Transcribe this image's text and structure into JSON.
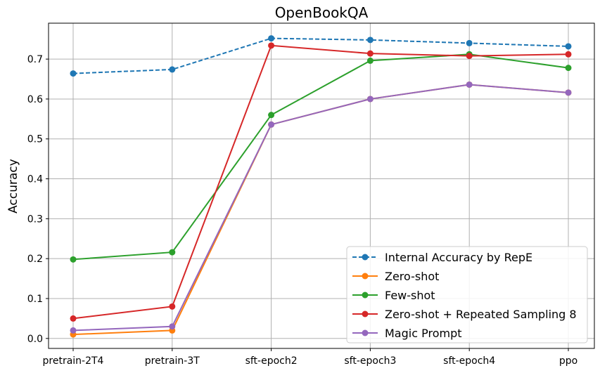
{
  "chart_data": {
    "type": "line",
    "title": "OpenBookQA",
    "xlabel": "",
    "ylabel": "Accuracy",
    "categories": [
      "pretrain-2T4",
      "pretrain-3T",
      "sft-epoch2",
      "sft-epoch3",
      "sft-epoch4",
      "ppo"
    ],
    "yticks": [
      "0.0",
      "0.1",
      "0.2",
      "0.3",
      "0.4",
      "0.5",
      "0.6",
      "0.7"
    ],
    "ylim": [
      -0.025,
      0.79
    ],
    "grid": true,
    "legend_position": "lower right",
    "series": [
      {
        "name": "Internal Accuracy by RepE",
        "color": "#1f77b4",
        "style": "dashed",
        "values": [
          0.664,
          0.674,
          0.752,
          0.748,
          0.74,
          0.732
        ]
      },
      {
        "name": "Zero-shot",
        "color": "#ff7f0e",
        "style": "solid",
        "values": [
          0.01,
          0.02,
          0.536,
          0.6,
          0.636,
          0.616
        ]
      },
      {
        "name": "Few-shot",
        "color": "#2ca02c",
        "style": "solid",
        "values": [
          0.198,
          0.216,
          0.56,
          0.696,
          0.712,
          0.678
        ]
      },
      {
        "name": "Zero-shot + Repeated Sampling 8",
        "color": "#d62728",
        "style": "solid",
        "values": [
          0.05,
          0.08,
          0.734,
          0.714,
          0.708,
          0.712
        ]
      },
      {
        "name": "Magic Prompt",
        "color": "#9467bd",
        "style": "solid",
        "values": [
          0.02,
          0.03,
          0.536,
          0.6,
          0.636,
          0.616
        ]
      }
    ]
  }
}
